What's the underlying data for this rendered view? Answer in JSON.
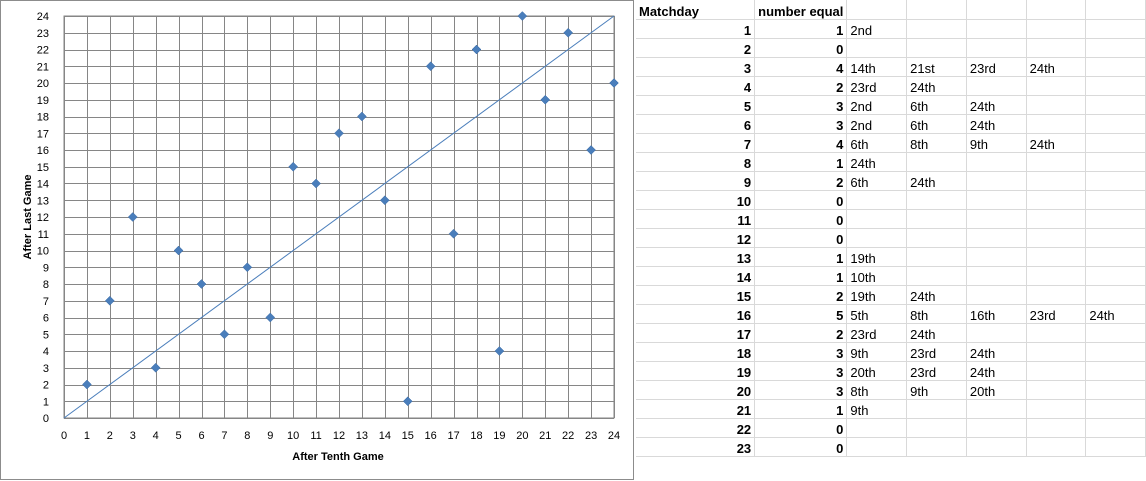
{
  "chart_data": {
    "type": "scatter",
    "xlabel": "After Tenth Game",
    "ylabel": "After Last Game",
    "xlim": [
      0,
      24
    ],
    "ylim": [
      0,
      24
    ],
    "grid": true,
    "marker_color": "#4a7ebb",
    "line_color": "#4a7ebb",
    "reference_line": {
      "from": [
        0,
        0
      ],
      "to": [
        24,
        24
      ]
    },
    "x_ticks": [
      "0",
      "1",
      "2",
      "3",
      "4",
      "5",
      "6",
      "7",
      "8",
      "9",
      "10",
      "11",
      "12",
      "13",
      "14",
      "15",
      "16",
      "17",
      "18",
      "19",
      "20",
      "21",
      "22",
      "23",
      "24"
    ],
    "y_ticks": [
      "0",
      "1",
      "2",
      "3",
      "4",
      "5",
      "6",
      "7",
      "8",
      "9",
      "10",
      "11",
      "12",
      "13",
      "14",
      "15",
      "16",
      "17",
      "18",
      "19",
      "20",
      "21",
      "22",
      "23",
      "24"
    ],
    "points": [
      {
        "x": 1,
        "y": 2
      },
      {
        "x": 2,
        "y": 7
      },
      {
        "x": 3,
        "y": 12
      },
      {
        "x": 4,
        "y": 3
      },
      {
        "x": 5,
        "y": 10
      },
      {
        "x": 6,
        "y": 8
      },
      {
        "x": 7,
        "y": 5
      },
      {
        "x": 8,
        "y": 9
      },
      {
        "x": 9,
        "y": 6
      },
      {
        "x": 10,
        "y": 15
      },
      {
        "x": 11,
        "y": 14
      },
      {
        "x": 12,
        "y": 17
      },
      {
        "x": 13,
        "y": 18
      },
      {
        "x": 14,
        "y": 13
      },
      {
        "x": 15,
        "y": 1
      },
      {
        "x": 16,
        "y": 21
      },
      {
        "x": 17,
        "y": 11
      },
      {
        "x": 18,
        "y": 22
      },
      {
        "x": 19,
        "y": 4
      },
      {
        "x": 20,
        "y": 24
      },
      {
        "x": 21,
        "y": 19
      },
      {
        "x": 22,
        "y": 23
      },
      {
        "x": 23,
        "y": 16
      },
      {
        "x": 24,
        "y": 20
      }
    ]
  },
  "table": {
    "headers": [
      "Matchday",
      "number equal"
    ],
    "rows": [
      {
        "matchday": "1",
        "count": "1",
        "positions": [
          "2nd"
        ]
      },
      {
        "matchday": "2",
        "count": "0",
        "positions": []
      },
      {
        "matchday": "3",
        "count": "4",
        "positions": [
          "14th",
          "21st",
          "23rd",
          "24th"
        ]
      },
      {
        "matchday": "4",
        "count": "2",
        "positions": [
          "23rd",
          "24th"
        ]
      },
      {
        "matchday": "5",
        "count": "3",
        "positions": [
          "2nd",
          "6th",
          "24th"
        ]
      },
      {
        "matchday": "6",
        "count": "3",
        "positions": [
          "2nd",
          "6th",
          "24th"
        ]
      },
      {
        "matchday": "7",
        "count": "4",
        "positions": [
          "6th",
          "8th",
          "9th",
          "24th"
        ]
      },
      {
        "matchday": "8",
        "count": "1",
        "positions": [
          "24th"
        ]
      },
      {
        "matchday": "9",
        "count": "2",
        "positions": [
          "6th",
          "24th"
        ]
      },
      {
        "matchday": "10",
        "count": "0",
        "positions": []
      },
      {
        "matchday": "11",
        "count": "0",
        "positions": []
      },
      {
        "matchday": "12",
        "count": "0",
        "positions": []
      },
      {
        "matchday": "13",
        "count": "1",
        "positions": [
          "19th"
        ]
      },
      {
        "matchday": "14",
        "count": "1",
        "positions": [
          "10th"
        ]
      },
      {
        "matchday": "15",
        "count": "2",
        "positions": [
          "19th",
          "24th"
        ]
      },
      {
        "matchday": "16",
        "count": "5",
        "positions": [
          "5th",
          "8th",
          "16th",
          "23rd",
          "24th"
        ]
      },
      {
        "matchday": "17",
        "count": "2",
        "positions": [
          "23rd",
          "24th"
        ]
      },
      {
        "matchday": "18",
        "count": "3",
        "positions": [
          "9th",
          "23rd",
          "24th"
        ]
      },
      {
        "matchday": "19",
        "count": "3",
        "positions": [
          "20th",
          "23rd",
          "24th"
        ]
      },
      {
        "matchday": "20",
        "count": "3",
        "positions": [
          "8th",
          "9th",
          "20th"
        ]
      },
      {
        "matchday": "21",
        "count": "1",
        "positions": [
          "9th"
        ]
      },
      {
        "matchday": "22",
        "count": "0",
        "positions": []
      },
      {
        "matchday": "23",
        "count": "0",
        "positions": []
      }
    ]
  }
}
